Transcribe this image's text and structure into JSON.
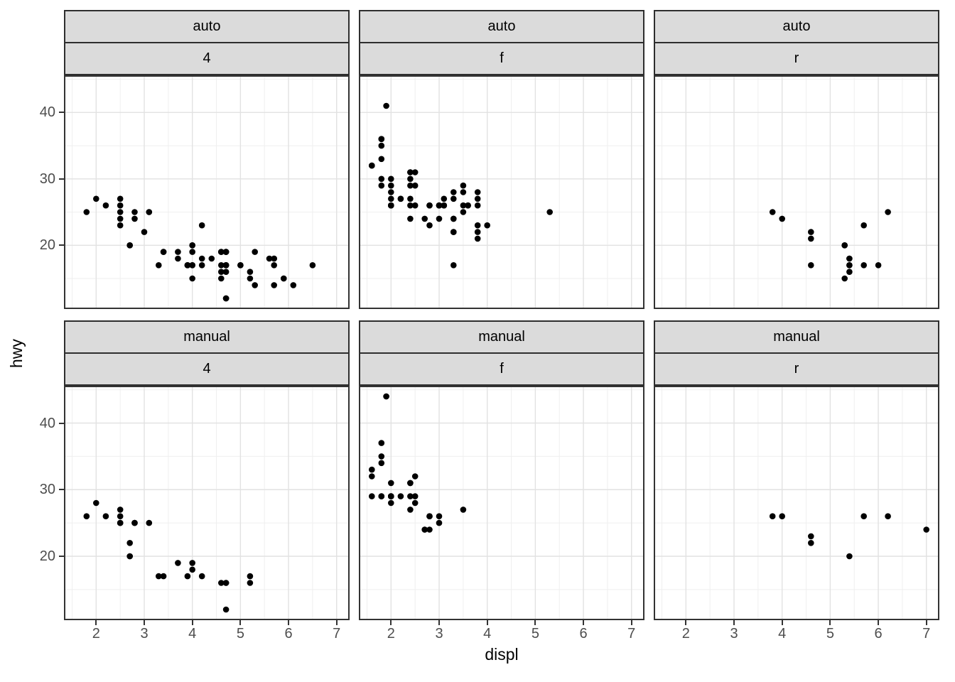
{
  "axes": {
    "x_label": "displ",
    "y_label": "hwy",
    "x_ticks": [
      2,
      3,
      4,
      5,
      6,
      7
    ],
    "y_ticks": [
      20,
      30,
      40
    ],
    "x_domain": [
      1.33,
      7.27
    ],
    "y_domain": [
      10.4,
      45.6
    ]
  },
  "facets": {
    "row_labels": [
      "auto",
      "manual"
    ],
    "col_labels": [
      "4",
      "f",
      "r"
    ]
  },
  "style": {
    "background": "#ffffff",
    "strip_fill": "#DBDBDB",
    "strip_border": "#2E2E2E",
    "panel_border": "#333333",
    "grid_major": "#E2E2E2",
    "grid_minor": "#EFEFEF",
    "point_color": "#000000",
    "tick_color": "#333333",
    "tick_label_color": "#4D4D4D"
  },
  "chart_data": {
    "type": "scatter",
    "title": "",
    "xlabel": "displ",
    "ylabel": "hwy",
    "x_range": [
      1.33,
      7.27
    ],
    "y_range": [
      10.4,
      45.6
    ],
    "x_major_gridlines": [
      2,
      3,
      4,
      5,
      6,
      7
    ],
    "x_minor_gridlines": [
      1.5,
      2.5,
      3.5,
      4.5,
      5.5,
      6.5
    ],
    "y_major_gridlines": [
      20,
      30,
      40
    ],
    "y_minor_gridlines": [
      15,
      25,
      35,
      45
    ],
    "legend": "none",
    "facet_rows": [
      "auto",
      "manual"
    ],
    "facet_cols": [
      "4",
      "f",
      "r"
    ],
    "panels": [
      {
        "trans": "auto",
        "drv": "4",
        "points": [
          [
            1.8,
            25
          ],
          [
            2.0,
            27
          ],
          [
            2.2,
            26
          ],
          [
            2.5,
            27
          ],
          [
            2.5,
            26
          ],
          [
            2.5,
            25
          ],
          [
            2.5,
            24
          ],
          [
            2.5,
            23
          ],
          [
            2.7,
            20
          ],
          [
            2.7,
            20
          ],
          [
            2.8,
            25
          ],
          [
            2.8,
            24
          ],
          [
            3.0,
            22
          ],
          [
            3.1,
            25
          ],
          [
            3.1,
            25
          ],
          [
            3.3,
            17
          ],
          [
            3.4,
            19
          ],
          [
            3.4,
            19
          ],
          [
            3.7,
            19
          ],
          [
            3.7,
            18
          ],
          [
            3.9,
            17
          ],
          [
            3.9,
            17
          ],
          [
            3.9,
            17
          ],
          [
            4.0,
            20
          ],
          [
            4.0,
            20
          ],
          [
            4.0,
            19
          ],
          [
            4.0,
            17
          ],
          [
            4.0,
            17
          ],
          [
            4.0,
            15
          ],
          [
            4.2,
            23
          ],
          [
            4.2,
            18
          ],
          [
            4.2,
            17
          ],
          [
            4.4,
            18
          ],
          [
            4.6,
            19
          ],
          [
            4.6,
            19
          ],
          [
            4.6,
            17
          ],
          [
            4.6,
            16
          ],
          [
            4.6,
            15
          ],
          [
            4.7,
            19
          ],
          [
            4.7,
            19
          ],
          [
            4.7,
            19
          ],
          [
            4.7,
            17
          ],
          [
            4.7,
            17
          ],
          [
            4.7,
            17
          ],
          [
            4.7,
            17
          ],
          [
            4.7,
            16
          ],
          [
            4.7,
            12
          ],
          [
            4.7,
            12
          ],
          [
            4.7,
            12
          ],
          [
            5.0,
            17
          ],
          [
            5.0,
            17
          ],
          [
            5.2,
            16
          ],
          [
            5.2,
            15
          ],
          [
            5.3,
            19
          ],
          [
            5.3,
            14
          ],
          [
            5.6,
            18
          ],
          [
            5.7,
            18
          ],
          [
            5.7,
            18
          ],
          [
            5.7,
            17
          ],
          [
            5.7,
            14
          ],
          [
            5.9,
            15
          ],
          [
            5.9,
            15
          ],
          [
            6.1,
            14
          ],
          [
            6.5,
            17
          ]
        ]
      },
      {
        "trans": "auto",
        "drv": "f",
        "points": [
          [
            1.6,
            32
          ],
          [
            1.6,
            32
          ],
          [
            1.8,
            36
          ],
          [
            1.8,
            36
          ],
          [
            1.8,
            35
          ],
          [
            1.8,
            33
          ],
          [
            1.8,
            30
          ],
          [
            1.8,
            29
          ],
          [
            1.9,
            41
          ],
          [
            2.0,
            30
          ],
          [
            2.0,
            29
          ],
          [
            2.0,
            28
          ],
          [
            2.0,
            27
          ],
          [
            2.0,
            26
          ],
          [
            2.0,
            26
          ],
          [
            2.0,
            26
          ],
          [
            2.2,
            27
          ],
          [
            2.2,
            27
          ],
          [
            2.4,
            31
          ],
          [
            2.4,
            31
          ],
          [
            2.4,
            30
          ],
          [
            2.4,
            29
          ],
          [
            2.4,
            27
          ],
          [
            2.4,
            26
          ],
          [
            2.4,
            24
          ],
          [
            2.5,
            31
          ],
          [
            2.5,
            29
          ],
          [
            2.5,
            26
          ],
          [
            2.7,
            24
          ],
          [
            2.8,
            26
          ],
          [
            2.8,
            26
          ],
          [
            2.8,
            23
          ],
          [
            3.0,
            26
          ],
          [
            3.0,
            26
          ],
          [
            3.0,
            26
          ],
          [
            3.0,
            24
          ],
          [
            3.1,
            27
          ],
          [
            3.1,
            26
          ],
          [
            3.1,
            26
          ],
          [
            3.3,
            28
          ],
          [
            3.3,
            27
          ],
          [
            3.3,
            24
          ],
          [
            3.3,
            24
          ],
          [
            3.3,
            22
          ],
          [
            3.3,
            22
          ],
          [
            3.3,
            17
          ],
          [
            3.5,
            29
          ],
          [
            3.5,
            28
          ],
          [
            3.5,
            26
          ],
          [
            3.5,
            25
          ],
          [
            3.6,
            26
          ],
          [
            3.6,
            26
          ],
          [
            3.8,
            28
          ],
          [
            3.8,
            27
          ],
          [
            3.8,
            26
          ],
          [
            3.8,
            23
          ],
          [
            3.8,
            22
          ],
          [
            3.8,
            21
          ],
          [
            4.0,
            23
          ],
          [
            5.3,
            25
          ]
        ]
      },
      {
        "trans": "auto",
        "drv": "r",
        "points": [
          [
            3.8,
            25
          ],
          [
            4.0,
            24
          ],
          [
            4.6,
            22
          ],
          [
            4.6,
            21
          ],
          [
            4.6,
            17
          ],
          [
            5.3,
            20
          ],
          [
            5.3,
            20
          ],
          [
            5.3,
            15
          ],
          [
            5.4,
            18
          ],
          [
            5.4,
            18
          ],
          [
            5.4,
            17
          ],
          [
            5.4,
            17
          ],
          [
            5.4,
            16
          ],
          [
            5.7,
            23
          ],
          [
            5.7,
            17
          ],
          [
            6.0,
            17
          ],
          [
            6.2,
            25
          ]
        ]
      },
      {
        "trans": "manual",
        "drv": "4",
        "points": [
          [
            1.8,
            26
          ],
          [
            2.0,
            28
          ],
          [
            2.2,
            26
          ],
          [
            2.5,
            27
          ],
          [
            2.5,
            26
          ],
          [
            2.5,
            25
          ],
          [
            2.5,
            25
          ],
          [
            2.7,
            22
          ],
          [
            2.7,
            20
          ],
          [
            2.7,
            20
          ],
          [
            2.8,
            25
          ],
          [
            2.8,
            25
          ],
          [
            3.1,
            25
          ],
          [
            3.3,
            17
          ],
          [
            3.4,
            17
          ],
          [
            3.7,
            19
          ],
          [
            3.9,
            17
          ],
          [
            4.0,
            19
          ],
          [
            4.0,
            18
          ],
          [
            4.2,
            17
          ],
          [
            4.6,
            16
          ],
          [
            4.7,
            16
          ],
          [
            4.7,
            16
          ],
          [
            4.7,
            12
          ],
          [
            5.2,
            17
          ],
          [
            5.2,
            16
          ]
        ]
      },
      {
        "trans": "manual",
        "drv": "f",
        "points": [
          [
            1.6,
            33
          ],
          [
            1.6,
            32
          ],
          [
            1.6,
            29
          ],
          [
            1.8,
            37
          ],
          [
            1.8,
            35
          ],
          [
            1.8,
            34
          ],
          [
            1.8,
            29
          ],
          [
            1.8,
            29
          ],
          [
            1.9,
            44
          ],
          [
            1.9,
            44
          ],
          [
            2.0,
            31
          ],
          [
            2.0,
            29
          ],
          [
            2.0,
            29
          ],
          [
            2.0,
            29
          ],
          [
            2.0,
            29
          ],
          [
            2.0,
            28
          ],
          [
            2.2,
            29
          ],
          [
            2.4,
            31
          ],
          [
            2.4,
            31
          ],
          [
            2.4,
            29
          ],
          [
            2.4,
            27
          ],
          [
            2.5,
            32
          ],
          [
            2.5,
            29
          ],
          [
            2.5,
            28
          ],
          [
            2.7,
            24
          ],
          [
            2.7,
            24
          ],
          [
            2.8,
            26
          ],
          [
            2.8,
            26
          ],
          [
            2.8,
            24
          ],
          [
            3.0,
            26
          ],
          [
            3.0,
            25
          ],
          [
            3.5,
            27
          ]
        ]
      },
      {
        "trans": "manual",
        "drv": "r",
        "points": [
          [
            3.8,
            26
          ],
          [
            4.0,
            26
          ],
          [
            4.6,
            23
          ],
          [
            4.6,
            22
          ],
          [
            5.4,
            20
          ],
          [
            5.7,
            26
          ],
          [
            6.2,
            26
          ],
          [
            7.0,
            24
          ]
        ]
      }
    ]
  }
}
